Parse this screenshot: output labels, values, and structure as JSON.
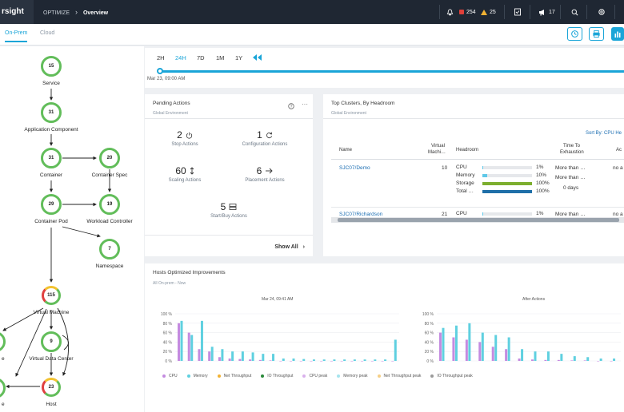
{
  "topbar": {
    "brand": "rsight",
    "crumb_parent": "OPTIMIZE",
    "crumb_current": "Overview",
    "critical_count": "254",
    "major_count": "25",
    "notifications_count": "17",
    "colors": {
      "critical": "#e0403a",
      "major": "#f2b233"
    }
  },
  "subheader": {
    "tabs": [
      "On-Prem",
      "Cloud"
    ]
  },
  "chain": {
    "nodes": [
      {
        "count": "15",
        "label": "Service"
      },
      {
        "count": "31",
        "label": "Application Component"
      },
      {
        "count": "31",
        "label": "Container"
      },
      {
        "count": "20",
        "label": "Container Spec"
      },
      {
        "count": "29",
        "label": "Container Pod"
      },
      {
        "count": "19",
        "label": "Workload Controller"
      },
      {
        "count": "7",
        "label": "Namespace"
      },
      {
        "count": "115",
        "label": "Virtual Machine"
      },
      {
        "count": "9",
        "label": "Virtual Data Center"
      },
      {
        "count": "23",
        "label": "Host"
      },
      {
        "count": "",
        "label": "e"
      },
      {
        "count": "",
        "label": "e"
      }
    ]
  },
  "timeline": {
    "ranges": [
      "2H",
      "24H",
      "7D",
      "1M",
      "1Y"
    ],
    "active": "24H",
    "date": "Mar 23, 09:00 AM"
  },
  "pending": {
    "title": "Pending Actions",
    "subtitle": "Global Environment",
    "items": [
      {
        "count": "2",
        "label": "Stop Actions"
      },
      {
        "count": "1",
        "label": "Configuration Actions"
      },
      {
        "count": "60",
        "label": "Scaling Actions"
      },
      {
        "count": "6",
        "label": "Placement Actions"
      },
      {
        "count": "5",
        "label": "Start/Buy Actions"
      }
    ],
    "show_all": "Show All"
  },
  "clusters": {
    "title": "Top Clusters, By Headroom",
    "subtitle": "Global Environment",
    "sort": "Sort By: CPU He",
    "headers": [
      "Name",
      "Virtual",
      "Machi…",
      "Headroom",
      "Time To",
      "Exhaustion",
      "Ac"
    ],
    "rows": [
      {
        "name": "SJC07/Demo",
        "vms": "10",
        "metrics": [
          {
            "name": "CPU",
            "pct": "1%",
            "fill": 0.01,
            "color": "#5fc8e8"
          },
          {
            "name": "Memory",
            "pct": "10%",
            "fill": 0.1,
            "color": "#5fc8e8"
          },
          {
            "name": "Storage",
            "pct": "100%",
            "fill": 1.0,
            "color": "#7cae2e"
          },
          {
            "name": "Total …",
            "pct": "100%",
            "fill": 1.0,
            "color": "#1f6fa8"
          }
        ],
        "time1": "More than …",
        "time2": "More than …",
        "time3": "0 days",
        "action": "no a"
      },
      {
        "name": "SJC07/Richardson",
        "vms": "21",
        "metrics": [
          {
            "name": "CPU",
            "pct": "1%",
            "fill": 0.01,
            "color": "#5fc8e8"
          }
        ],
        "time1": "More than …",
        "action": "no a"
      }
    ]
  },
  "hosts": {
    "title": "Hosts Optimized Improvements",
    "subtitle": "All On-prem - Now",
    "before_title": "Mar 24, 09:41 AM",
    "after_title": "After Actions",
    "yticks": [
      "100 %",
      "80 %",
      "60 %",
      "40 %",
      "20 %",
      "0 %"
    ],
    "legend": [
      {
        "label": "CPU",
        "color": "#c48be0"
      },
      {
        "label": "Memory",
        "color": "#5fd0e0"
      },
      {
        "label": "Net Throughput",
        "color": "#f2b233"
      },
      {
        "label": "IO Throughput",
        "color": "#2a8a3a"
      },
      {
        "label": "CPU peak",
        "color": "#d9b0ec"
      },
      {
        "label": "Memory peak",
        "color": "#a6e4ee"
      },
      {
        "label": "Net Throughput peak",
        "color": "#f6cf86"
      },
      {
        "label": "IO Throughput peak",
        "color": "#9a9a9a"
      }
    ]
  },
  "chart_data": [
    {
      "type": "bar",
      "title": "Mar 24, 09:41 AM",
      "ylim": [
        0,
        100
      ],
      "series": [
        {
          "name": "CPU",
          "values": [
            80,
            60,
            25,
            20,
            8,
            5,
            4,
            3,
            2,
            1,
            0,
            0,
            0,
            0,
            0,
            0,
            0,
            0,
            0,
            0,
            0,
            0
          ]
        },
        {
          "name": "Memory",
          "values": [
            85,
            55,
            85,
            30,
            25,
            20,
            20,
            18,
            15,
            15,
            5,
            5,
            4,
            3,
            3,
            3,
            3,
            3,
            3,
            3,
            3,
            45
          ]
        }
      ]
    },
    {
      "type": "bar",
      "title": "After Actions",
      "ylim": [
        0,
        100
      ],
      "series": [
        {
          "name": "CPU",
          "values": [
            60,
            50,
            45,
            40,
            30,
            25,
            5,
            3,
            2,
            2,
            1,
            1,
            0,
            0
          ]
        },
        {
          "name": "Memory",
          "values": [
            70,
            75,
            80,
            60,
            55,
            50,
            25,
            20,
            20,
            15,
            10,
            8,
            5,
            5
          ]
        }
      ]
    }
  ]
}
